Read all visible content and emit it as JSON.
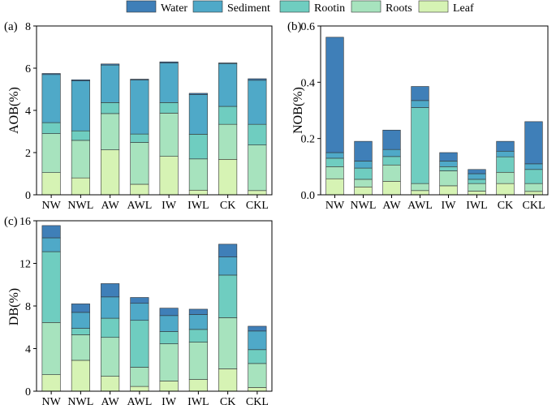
{
  "legend": [
    {
      "name": "Water",
      "color": "#3f7fb8"
    },
    {
      "name": "Sediment",
      "color": "#4fa9c8"
    },
    {
      "name": "Rootin",
      "color": "#6fcdc0"
    },
    {
      "name": "Roots",
      "color": "#a7e3be"
    },
    {
      "name": "Leaf",
      "color": "#d6f3b4"
    }
  ],
  "chart_data": [
    {
      "type": "bar",
      "stacked": true,
      "panel_label": "(a)",
      "title": "",
      "xlabel": "",
      "ylabel": "AOB(%)",
      "ylim": [
        0,
        8
      ],
      "yticks": [
        "0",
        "2",
        "4",
        "6",
        "8"
      ],
      "categories": [
        "NW",
        "NWL",
        "AW",
        "AWL",
        "IW",
        "IWL",
        "CK",
        "CKL"
      ],
      "series": [
        {
          "name": "Leaf",
          "values": [
            1.05,
            0.8,
            2.13,
            0.5,
            1.82,
            0.22,
            1.68,
            0.2
          ]
        },
        {
          "name": "Roots",
          "values": [
            1.85,
            1.78,
            1.72,
            1.98,
            2.05,
            1.48,
            1.66,
            2.16
          ]
        },
        {
          "name": "Rootin",
          "values": [
            0.52,
            0.45,
            0.52,
            0.4,
            0.5,
            1.17,
            0.85,
            0.98
          ]
        },
        {
          "name": "Sediment",
          "values": [
            2.28,
            2.37,
            1.78,
            2.56,
            1.88,
            1.88,
            2.03,
            2.09
          ]
        },
        {
          "name": "Water",
          "values": [
            0.05,
            0.05,
            0.05,
            0.04,
            0.05,
            0.06,
            0.03,
            0.07
          ]
        }
      ]
    },
    {
      "type": "bar",
      "stacked": true,
      "panel_label": "(b)",
      "title": "",
      "xlabel": "",
      "ylabel": "NOB(%)",
      "ylim": [
        0,
        0.6
      ],
      "yticks": [
        "0.0",
        "0.2",
        "0.4",
        "0.6"
      ],
      "categories": [
        "NW",
        "NWL",
        "AW",
        "AWL",
        "IW",
        "IWL",
        "CK",
        "CKL"
      ],
      "series": [
        {
          "name": "Leaf",
          "values": [
            0.057,
            0.028,
            0.048,
            0.015,
            0.032,
            0.013,
            0.04,
            0.012
          ]
        },
        {
          "name": "Roots",
          "values": [
            0.043,
            0.027,
            0.058,
            0.025,
            0.053,
            0.027,
            0.04,
            0.028
          ]
        },
        {
          "name": "Rootin",
          "values": [
            0.03,
            0.04,
            0.03,
            0.27,
            0.015,
            0.015,
            0.055,
            0.05
          ]
        },
        {
          "name": "Sediment",
          "values": [
            0.02,
            0.025,
            0.025,
            0.025,
            0.02,
            0.02,
            0.02,
            0.02
          ]
        },
        {
          "name": "Water",
          "values": [
            0.41,
            0.07,
            0.069,
            0.05,
            0.03,
            0.015,
            0.035,
            0.15
          ]
        }
      ]
    },
    {
      "type": "bar",
      "stacked": true,
      "panel_label": "(c)",
      "title": "",
      "xlabel": "",
      "ylabel": "DB(%)",
      "ylim": [
        0,
        16
      ],
      "yticks": [
        "0",
        "4",
        "8",
        "12",
        "16"
      ],
      "categories": [
        "NW",
        "NWL",
        "AW",
        "AWL",
        "IW",
        "IWL",
        "CK",
        "CKL"
      ],
      "series": [
        {
          "name": "Leaf",
          "values": [
            1.55,
            2.9,
            1.4,
            0.45,
            0.95,
            1.1,
            2.1,
            0.35
          ]
        },
        {
          "name": "Roots",
          "values": [
            4.9,
            2.4,
            3.65,
            1.8,
            3.5,
            3.5,
            4.8,
            2.25
          ]
        },
        {
          "name": "Rootin",
          "values": [
            6.65,
            0.6,
            1.8,
            4.4,
            1.15,
            1.2,
            4.0,
            1.3
          ]
        },
        {
          "name": "Sediment",
          "values": [
            1.3,
            1.5,
            2.0,
            1.6,
            1.5,
            1.4,
            1.7,
            1.75
          ]
        },
        {
          "name": "Water",
          "values": [
            1.15,
            0.8,
            1.25,
            0.55,
            0.7,
            0.5,
            1.2,
            0.45
          ]
        }
      ]
    }
  ]
}
